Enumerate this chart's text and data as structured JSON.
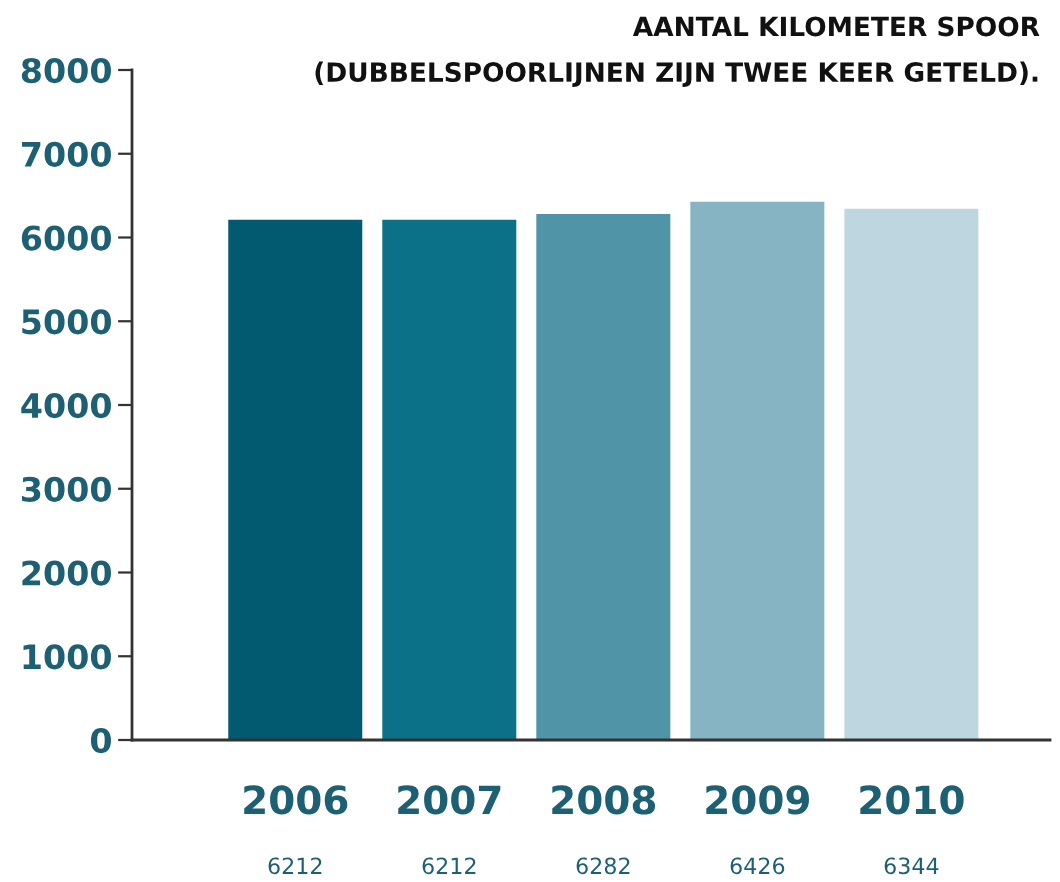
{
  "chart_data": {
    "type": "bar",
    "title": "AANTAL KILOMETER SPOOR\n(DUBBELSPOORLIJNEN ZIJN TWEE KEER GETELD).",
    "categories": [
      "2006",
      "2007",
      "2008",
      "2009",
      "2010"
    ],
    "values": [
      6212,
      6212,
      6282,
      6426,
      6344
    ],
    "colors": [
      "#025a70",
      "#0a7189",
      "#5094a8",
      "#86b4c3",
      "#bdd6df"
    ],
    "ylim": [
      0,
      8000
    ],
    "yticks": [
      0,
      1000,
      2000,
      3000,
      4000,
      5000,
      6000,
      7000,
      8000
    ],
    "grid": false,
    "legend": false,
    "data_labels": true
  }
}
